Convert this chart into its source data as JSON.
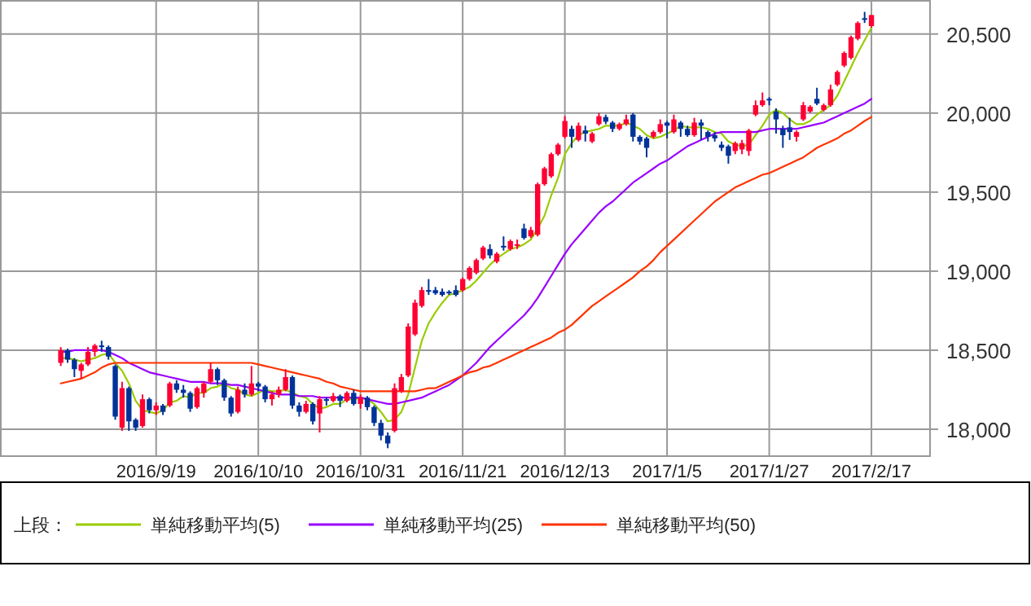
{
  "chart_data": {
    "type": "candlestick",
    "categories": [
      null,
      null,
      null,
      null,
      null,
      null,
      null,
      null,
      null,
      null,
      null,
      null,
      null,
      null,
      "2016/9/19",
      null,
      null,
      null,
      null,
      null,
      null,
      null,
      null,
      null,
      null,
      null,
      null,
      null,
      null,
      "2016/10/10",
      null,
      null,
      null,
      null,
      null,
      null,
      null,
      null,
      null,
      null,
      null,
      null,
      null,
      null,
      "2016/10/31",
      null,
      null,
      null,
      null,
      null,
      null,
      null,
      null,
      null,
      null,
      null,
      null,
      null,
      null,
      "2016/11/21",
      null,
      null,
      null,
      null,
      null,
      null,
      null,
      null,
      null,
      null,
      null,
      null,
      null,
      null,
      "2016/12/13",
      null,
      null,
      null,
      null,
      null,
      null,
      null,
      null,
      null,
      null,
      null,
      null,
      null,
      null,
      "2017/1/5",
      null,
      null,
      null,
      null,
      null,
      null,
      null,
      null,
      null,
      null,
      null,
      null,
      null,
      null,
      "2017/1/27",
      null,
      null,
      null,
      null,
      null,
      null,
      null,
      null,
      null,
      null,
      null,
      null,
      null,
      null,
      "2017/2/17"
    ],
    "ohlc": [
      [
        18420,
        18520,
        18400,
        18500
      ],
      [
        18500,
        18510,
        18420,
        18440
      ],
      [
        18440,
        18450,
        18330,
        18380
      ],
      [
        18370,
        18420,
        18320,
        18410
      ],
      [
        18410,
        18520,
        18400,
        18490
      ],
      [
        18490,
        18540,
        18460,
        18530
      ],
      [
        18530,
        18560,
        18490,
        18520
      ],
      [
        18520,
        18530,
        18440,
        18460
      ],
      [
        18400,
        18410,
        18060,
        18080
      ],
      [
        18010,
        18300,
        17990,
        18260
      ],
      [
        18260,
        18270,
        17990,
        18050
      ],
      [
        18060,
        18070,
        17990,
        18010
      ],
      [
        18020,
        18220,
        18010,
        18190
      ],
      [
        18190,
        18200,
        18100,
        18120
      ],
      [
        18120,
        18170,
        18090,
        18150
      ],
      [
        18150,
        18160,
        18090,
        18110
      ],
      [
        18150,
        18300,
        18140,
        18290
      ],
      [
        18290,
        18310,
        18230,
        18250
      ],
      [
        18250,
        18280,
        18200,
        18230
      ],
      [
        18230,
        18240,
        18110,
        18130
      ],
      [
        18140,
        18270,
        18130,
        18260
      ],
      [
        18230,
        18300,
        18200,
        18290
      ],
      [
        18300,
        18420,
        18290,
        18380
      ],
      [
        18380,
        18390,
        18280,
        18310
      ],
      [
        18310,
        18320,
        18180,
        18200
      ],
      [
        18200,
        18210,
        18080,
        18100
      ],
      [
        18110,
        18270,
        18100,
        18250
      ],
      [
        18250,
        18290,
        18200,
        18220
      ],
      [
        18220,
        18400,
        18210,
        18290
      ],
      [
        18290,
        18300,
        18240,
        18270
      ],
      [
        18270,
        18280,
        18170,
        18190
      ],
      [
        18190,
        18240,
        18150,
        18220
      ],
      [
        18220,
        18270,
        18200,
        18250
      ],
      [
        18250,
        18380,
        18240,
        18330
      ],
      [
        18330,
        18340,
        18130,
        18150
      ],
      [
        18150,
        18170,
        18080,
        18110
      ],
      [
        18110,
        18180,
        18100,
        18160
      ],
      [
        18160,
        18170,
        18030,
        18050
      ],
      [
        18100,
        18210,
        17980,
        18190
      ],
      [
        18190,
        18200,
        18150,
        18180
      ],
      [
        18180,
        18230,
        18170,
        18210
      ],
      [
        18210,
        18220,
        18140,
        18180
      ],
      [
        18180,
        18240,
        18170,
        18230
      ],
      [
        18230,
        18250,
        18150,
        18160
      ],
      [
        18160,
        18220,
        18130,
        18200
      ],
      [
        18200,
        18210,
        18120,
        18140
      ],
      [
        18140,
        18150,
        18020,
        18040
      ],
      [
        18040,
        18060,
        17930,
        17960
      ],
      [
        17960,
        17980,
        17880,
        17910
      ],
      [
        17990,
        18290,
        17980,
        18260
      ],
      [
        18240,
        18350,
        18230,
        18330
      ],
      [
        18340,
        18670,
        18330,
        18650
      ],
      [
        18600,
        18820,
        18590,
        18800
      ],
      [
        18780,
        18900,
        18770,
        18880
      ],
      [
        18880,
        18950,
        18850,
        18870
      ],
      [
        18880,
        18900,
        18850,
        18860
      ],
      [
        18870,
        18890,
        18840,
        18850
      ],
      [
        18870,
        18880,
        18850,
        18860
      ],
      [
        18880,
        18910,
        18840,
        18850
      ],
      [
        18880,
        18960,
        18870,
        18950
      ],
      [
        18950,
        19030,
        18940,
        19020
      ],
      [
        18990,
        19080,
        18980,
        19070
      ],
      [
        19080,
        19160,
        19070,
        19150
      ],
      [
        19140,
        19170,
        19080,
        19100
      ],
      [
        19060,
        19120,
        19050,
        19110
      ],
      [
        19160,
        19220,
        19130,
        19150
      ],
      [
        19140,
        19200,
        19130,
        19190
      ],
      [
        19160,
        19200,
        19140,
        19170
      ],
      [
        19270,
        19300,
        19200,
        19210
      ],
      [
        19220,
        19280,
        19210,
        19260
      ],
      [
        19230,
        19560,
        19220,
        19550
      ],
      [
        19550,
        19660,
        19540,
        19650
      ],
      [
        19600,
        19750,
        19590,
        19740
      ],
      [
        19740,
        19810,
        19730,
        19800
      ],
      [
        19850,
        19980,
        19840,
        19950
      ],
      [
        19900,
        19920,
        19780,
        19850
      ],
      [
        19830,
        19940,
        19820,
        19920
      ],
      [
        19890,
        19920,
        19820,
        19870
      ],
      [
        19820,
        19880,
        19810,
        19870
      ],
      [
        19930,
        20000,
        19920,
        19980
      ],
      [
        19975,
        19990,
        19930,
        19945
      ],
      [
        19940,
        19950,
        19880,
        19900
      ],
      [
        19900,
        19940,
        19890,
        19930
      ],
      [
        19930,
        19990,
        19920,
        19960
      ],
      [
        19990,
        20000,
        19820,
        19850
      ],
      [
        19850,
        19860,
        19800,
        19820
      ],
      [
        19840,
        19850,
        19720,
        19780
      ],
      [
        19850,
        19890,
        19840,
        19880
      ],
      [
        19880,
        19960,
        19870,
        19930
      ],
      [
        19940,
        19950,
        19840,
        19920
      ],
      [
        19880,
        19990,
        19870,
        19960
      ],
      [
        19940,
        19950,
        19850,
        19900
      ],
      [
        19900,
        19920,
        19850,
        19860
      ],
      [
        19860,
        19970,
        19850,
        19940
      ],
      [
        19940,
        19960,
        19830,
        19920
      ],
      [
        19880,
        19890,
        19820,
        19850
      ],
      [
        19860,
        19880,
        19820,
        19840
      ],
      [
        19800,
        19820,
        19760,
        19780
      ],
      [
        19790,
        19800,
        19680,
        19730
      ],
      [
        19760,
        19820,
        19740,
        19810
      ],
      [
        19770,
        19830,
        19740,
        19810
      ],
      [
        19760,
        19900,
        19730,
        19890
      ],
      [
        19990,
        20080,
        19980,
        20050
      ],
      [
        20050,
        20130,
        20040,
        20080
      ],
      [
        20090,
        20100,
        20050,
        20080
      ],
      [
        20010,
        20030,
        19870,
        19960
      ],
      [
        19900,
        19920,
        19780,
        19860
      ],
      [
        19910,
        19970,
        19830,
        19880
      ],
      [
        19850,
        19890,
        19820,
        19880
      ],
      [
        19960,
        20070,
        19950,
        20050
      ],
      [
        20010,
        20050,
        20000,
        20040
      ],
      [
        20090,
        20160,
        20050,
        20060
      ],
      [
        20020,
        20060,
        20010,
        20050
      ],
      [
        20050,
        20180,
        20040,
        20150
      ],
      [
        20180,
        20270,
        20170,
        20260
      ],
      [
        20300,
        20390,
        20290,
        20380
      ],
      [
        20350,
        20490,
        20340,
        20480
      ],
      [
        20470,
        20580,
        20460,
        20570
      ],
      [
        20600,
        20640,
        20570,
        20590
      ],
      [
        20550,
        20620,
        20540,
        20620
      ]
    ],
    "series": [
      {
        "type": "line",
        "name": "単純移動平均(5)",
        "color": "#99cc00",
        "values": [
          18450,
          18450,
          18440,
          18430,
          18440,
          18450,
          18470,
          18480,
          18420,
          18370,
          18290,
          18180,
          18120,
          18110,
          18100,
          18120,
          18170,
          18180,
          18210,
          18200,
          18230,
          18230,
          18260,
          18270,
          18290,
          18260,
          18250,
          18220,
          18210,
          18230,
          18250,
          18240,
          18240,
          18250,
          18230,
          18210,
          18200,
          18160,
          18130,
          18140,
          18160,
          18160,
          18190,
          18190,
          18200,
          18190,
          18160,
          18110,
          18050,
          18060,
          18110,
          18220,
          18390,
          18560,
          18670,
          18740,
          18800,
          18850,
          18860,
          18880,
          18900,
          18940,
          18990,
          19040,
          19080,
          19110,
          19140,
          19150,
          19170,
          19200,
          19270,
          19350,
          19480,
          19590,
          19740,
          19810,
          19860,
          19880,
          19890,
          19900,
          19920,
          19920,
          19920,
          19940,
          19920,
          19900,
          19860,
          19840,
          19850,
          19870,
          19890,
          19920,
          19910,
          19910,
          19910,
          19900,
          19880,
          19870,
          19820,
          19800,
          19790,
          19800,
          19860,
          19920,
          19990,
          20020,
          20000,
          19960,
          19930,
          19930,
          19950,
          19990,
          20020,
          20050,
          20110,
          20200,
          20290,
          20380,
          20460,
          20540
        ]
      },
      {
        "type": "line",
        "name": "単純移動平均(25)",
        "color": "#9900ff",
        "values": [
          18490,
          18490,
          18500,
          18500,
          18500,
          18500,
          18500,
          18490,
          18470,
          18450,
          18420,
          18400,
          18380,
          18360,
          18350,
          18340,
          18330,
          18320,
          18310,
          18300,
          18300,
          18300,
          18290,
          18290,
          18290,
          18280,
          18280,
          18270,
          18260,
          18250,
          18240,
          18230,
          18220,
          18220,
          18220,
          18210,
          18210,
          18210,
          18200,
          18200,
          18200,
          18200,
          18200,
          18200,
          18200,
          18190,
          18180,
          18170,
          18160,
          18160,
          18170,
          18180,
          18190,
          18200,
          18220,
          18240,
          18260,
          18280,
          18310,
          18340,
          18380,
          18420,
          18470,
          18520,
          18560,
          18600,
          18640,
          18680,
          18720,
          18770,
          18830,
          18900,
          18970,
          19040,
          19110,
          19170,
          19220,
          19270,
          19320,
          19370,
          19410,
          19440,
          19480,
          19520,
          19560,
          19590,
          19620,
          19650,
          19680,
          19700,
          19730,
          19760,
          19790,
          19810,
          19830,
          19850,
          19870,
          19880,
          19880,
          19880,
          19880,
          19880,
          19880,
          19890,
          19900,
          19900,
          19900,
          19900,
          19900,
          19910,
          19920,
          19930,
          19940,
          19960,
          19980,
          20000,
          20020,
          20040,
          20060,
          20090
        ]
      },
      {
        "type": "line",
        "name": "単純移動平均(50)",
        "color": "#ff3300",
        "values": [
          18290,
          18300,
          18310,
          18320,
          18340,
          18360,
          18390,
          18410,
          18420,
          18420,
          18420,
          18420,
          18420,
          18420,
          18420,
          18420,
          18420,
          18420,
          18420,
          18420,
          18420,
          18420,
          18420,
          18420,
          18420,
          18420,
          18420,
          18420,
          18420,
          18410,
          18400,
          18390,
          18380,
          18370,
          18360,
          18350,
          18340,
          18330,
          18320,
          18300,
          18290,
          18270,
          18260,
          18250,
          18240,
          18240,
          18240,
          18240,
          18240,
          18240,
          18240,
          18240,
          18240,
          18250,
          18260,
          18260,
          18280,
          18300,
          18320,
          18340,
          18360,
          18370,
          18390,
          18400,
          18420,
          18440,
          18460,
          18480,
          18500,
          18520,
          18540,
          18560,
          18580,
          18610,
          18630,
          18660,
          18700,
          18740,
          18780,
          18810,
          18840,
          18870,
          18900,
          18930,
          18960,
          19000,
          19030,
          19070,
          19120,
          19160,
          19200,
          19240,
          19280,
          19320,
          19360,
          19400,
          19440,
          19470,
          19500,
          19530,
          19550,
          19570,
          19590,
          19610,
          19620,
          19640,
          19660,
          19680,
          19700,
          19720,
          19750,
          19780,
          19800,
          19820,
          19840,
          19870,
          19890,
          19920,
          19950,
          19975
        ]
      }
    ],
    "ylim": [
      17830,
      20710
    ],
    "yticks": [
      {
        "value": 18000,
        "label": "18,000"
      },
      {
        "value": 18500,
        "label": "18,500"
      },
      {
        "value": 19000,
        "label": "19,000"
      },
      {
        "value": 19500,
        "label": "19,500"
      },
      {
        "value": 20000,
        "label": "20,000"
      },
      {
        "value": 20500,
        "label": "20,500"
      }
    ],
    "grid": true,
    "legend": "bottom",
    "legend_title": "上段："
  }
}
